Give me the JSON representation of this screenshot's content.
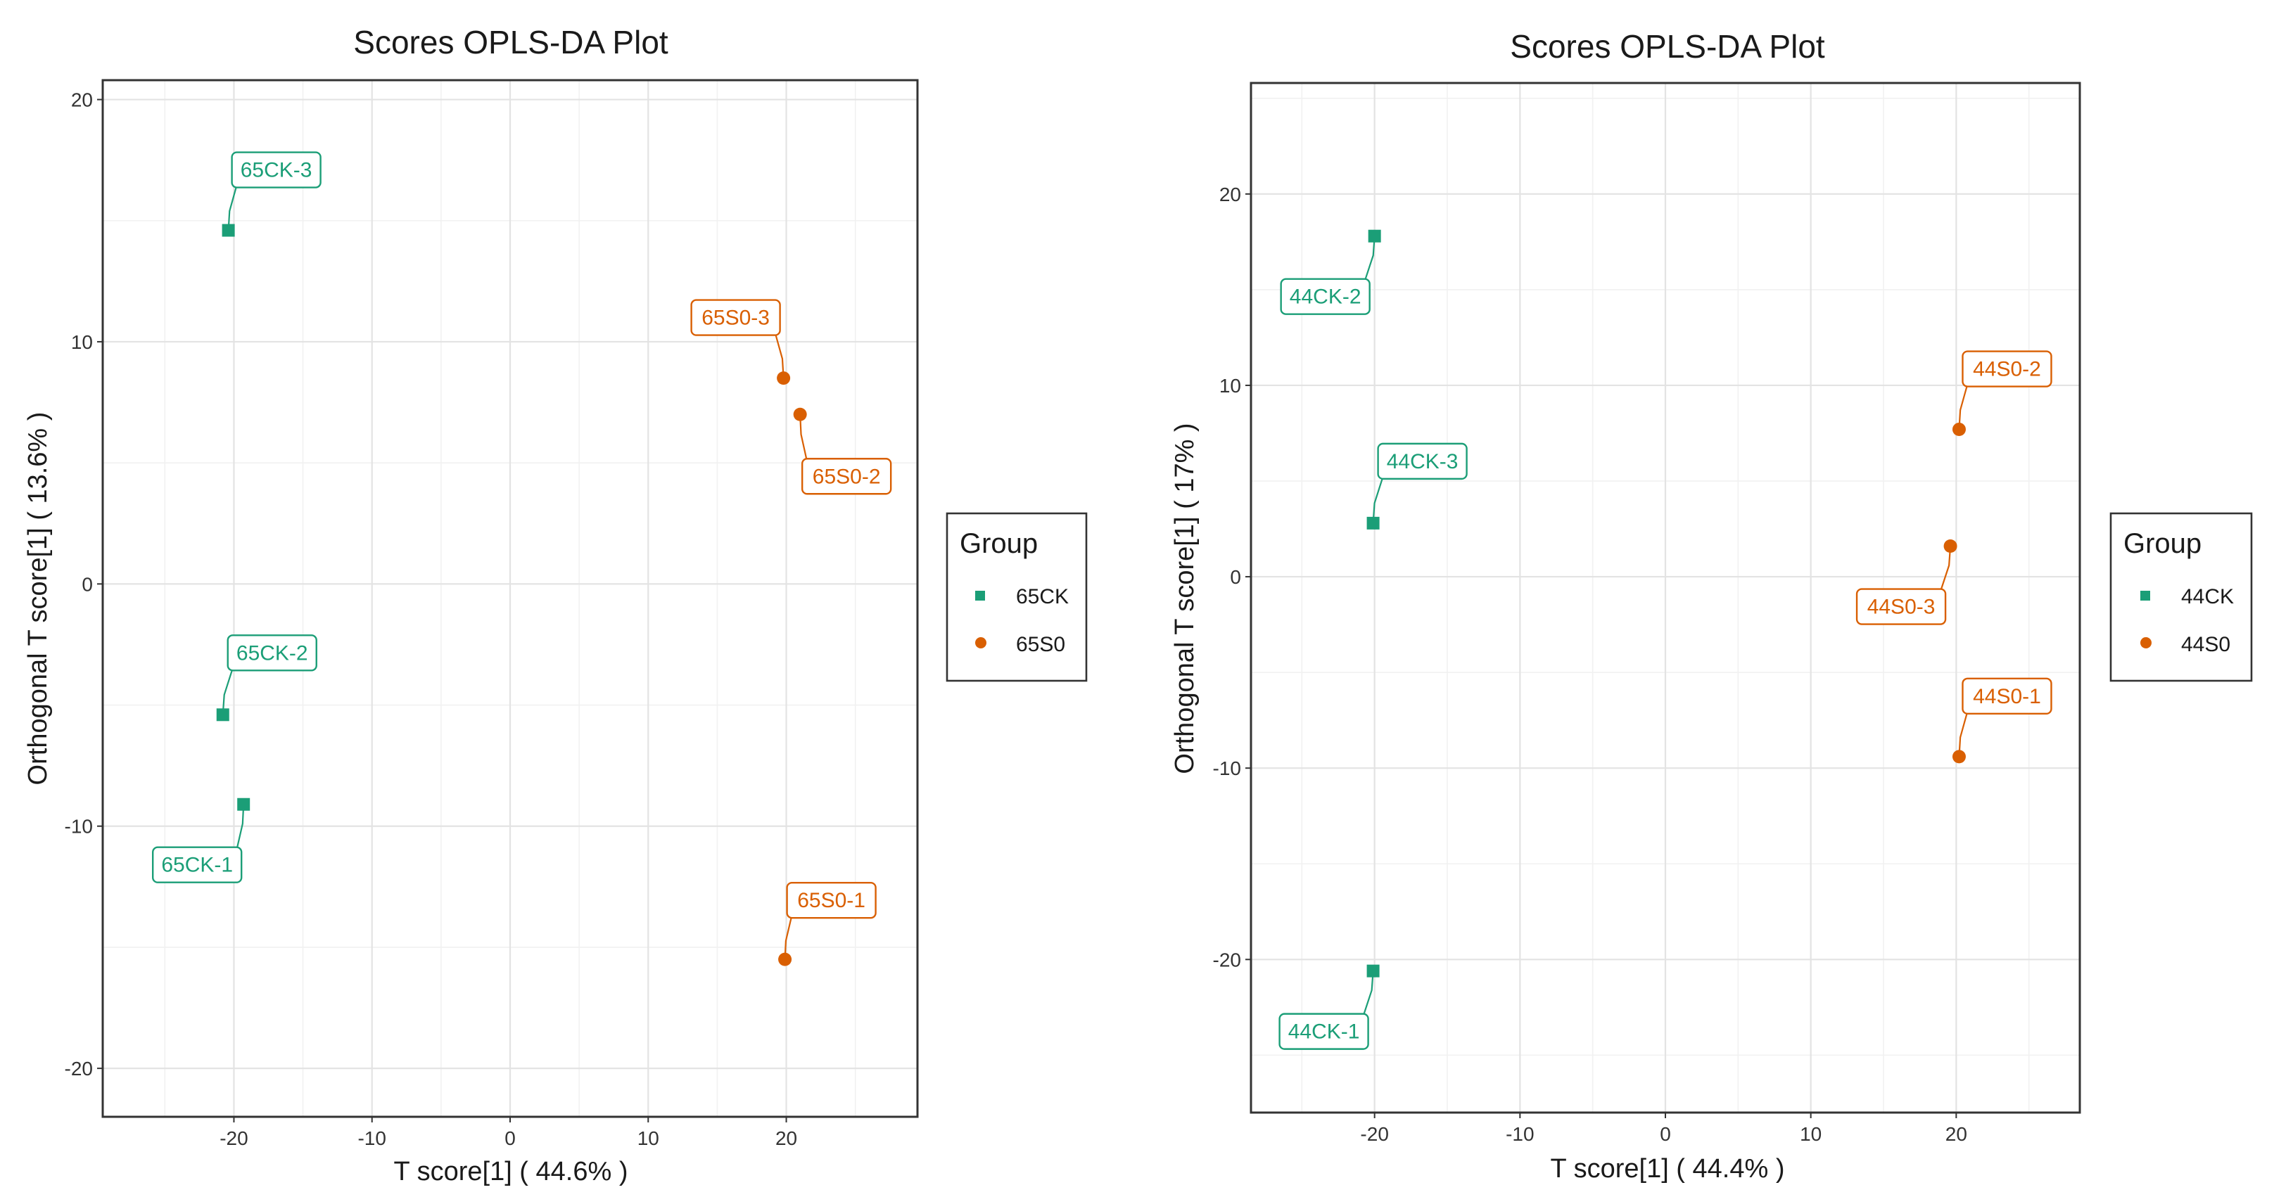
{
  "chart_data": [
    {
      "type": "scatter",
      "title": "Scores OPLS-DA Plot",
      "xlabel": "T score[1] ( 44.6% )",
      "ylabel": "Orthogonal T score[1] ( 13.6% )",
      "xlim": [
        -29.5,
        29.5
      ],
      "ylim": [
        -22,
        20.8
      ],
      "xticks": [
        -20,
        -10,
        0,
        10,
        20
      ],
      "yticks": [
        -20,
        -10,
        0,
        10,
        20
      ],
      "legend": {
        "title": "Group",
        "position": "right"
      },
      "series": [
        {
          "name": "65CK",
          "color": "#1b9e77",
          "marker": "square",
          "points": [
            {
              "label": "65CK-1",
              "x": -19.3,
              "y": -9.1
            },
            {
              "label": "65CK-2",
              "x": -20.8,
              "y": -5.4
            },
            {
              "label": "65CK-3",
              "x": -20.4,
              "y": 14.6
            }
          ]
        },
        {
          "name": "65S0",
          "color": "#d95f02",
          "marker": "circle",
          "points": [
            {
              "label": "65S0-1",
              "x": 19.9,
              "y": -15.5
            },
            {
              "label": "65S0-2",
              "x": 21.0,
              "y": 7.0
            },
            {
              "label": "65S0-3",
              "x": 19.8,
              "y": 8.5
            }
          ]
        }
      ]
    },
    {
      "type": "scatter",
      "title": "Scores OPLS-DA Plot",
      "xlabel": "T score[1] ( 44.4% )",
      "ylabel": "Orthogonal T score[1] ( 17% )",
      "xlim": [
        -28.5,
        28.5
      ],
      "ylim": [
        -28,
        25.8
      ],
      "xticks": [
        -20,
        -10,
        0,
        10,
        20
      ],
      "yticks": [
        -20,
        -10,
        0,
        10,
        20
      ],
      "legend": {
        "title": "Group",
        "position": "right"
      },
      "series": [
        {
          "name": "44CK",
          "color": "#1b9e77",
          "marker": "square",
          "points": [
            {
              "label": "44CK-1",
              "x": -20.1,
              "y": -20.6
            },
            {
              "label": "44CK-2",
              "x": -20.0,
              "y": 17.8
            },
            {
              "label": "44CK-3",
              "x": -20.1,
              "y": 2.8
            }
          ]
        },
        {
          "name": "44S0",
          "color": "#d95f02",
          "marker": "circle",
          "points": [
            {
              "label": "44S0-1",
              "x": 20.2,
              "y": -9.4
            },
            {
              "label": "44S0-2",
              "x": 20.2,
              "y": 7.7
            },
            {
              "label": "44S0-3",
              "x": 19.6,
              "y": 1.6
            }
          ]
        }
      ]
    }
  ]
}
